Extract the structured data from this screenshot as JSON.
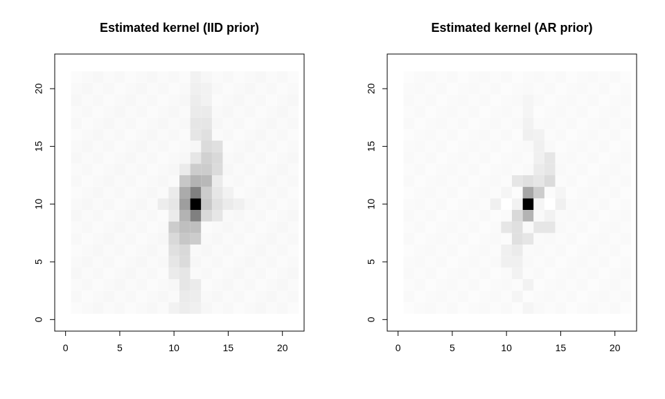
{
  "chart_data": [
    {
      "type": "heatmap",
      "title": "Estimated kernel (IID prior)",
      "xlabel": "",
      "ylabel": "",
      "xlim": [
        0,
        22
      ],
      "ylim": [
        0,
        22
      ],
      "xticks": [
        "0",
        "5",
        "10",
        "15",
        "20"
      ],
      "yticks": [
        "0",
        "5",
        "10",
        "15",
        "20"
      ],
      "colormap": "white-to-black (grayscale)",
      "grid": false,
      "x_range": [
        1,
        21
      ],
      "y_range": [
        1,
        21
      ],
      "cells": [
        [
          12,
          10,
          1.0
        ],
        [
          12,
          11,
          0.5
        ],
        [
          12,
          9,
          0.5
        ],
        [
          11,
          10,
          0.38
        ],
        [
          13,
          10,
          0.22
        ],
        [
          11,
          11,
          0.33
        ],
        [
          11,
          9,
          0.3
        ],
        [
          13,
          11,
          0.2
        ],
        [
          13,
          9,
          0.15
        ],
        [
          12,
          12,
          0.3
        ],
        [
          11,
          12,
          0.22
        ],
        [
          13,
          12,
          0.28
        ],
        [
          12,
          13,
          0.2
        ],
        [
          13,
          13,
          0.2
        ],
        [
          14,
          13,
          0.14
        ],
        [
          13,
          14,
          0.18
        ],
        [
          14,
          14,
          0.15
        ],
        [
          13,
          15,
          0.14
        ],
        [
          14,
          15,
          0.12
        ],
        [
          13,
          16,
          0.12
        ],
        [
          12,
          16,
          0.1
        ],
        [
          13,
          17,
          0.1
        ],
        [
          12,
          17,
          0.1
        ],
        [
          12,
          18,
          0.08
        ],
        [
          13,
          18,
          0.08
        ],
        [
          12,
          19,
          0.07
        ],
        [
          12,
          20,
          0.06
        ],
        [
          13,
          20,
          0.05
        ],
        [
          12,
          21,
          0.05
        ],
        [
          11,
          8,
          0.25
        ],
        [
          12,
          8,
          0.25
        ],
        [
          10,
          8,
          0.2
        ],
        [
          11,
          7,
          0.22
        ],
        [
          12,
          7,
          0.2
        ],
        [
          10,
          7,
          0.15
        ],
        [
          11,
          6,
          0.15
        ],
        [
          10,
          6,
          0.12
        ],
        [
          11,
          5,
          0.14
        ],
        [
          10,
          5,
          0.1
        ],
        [
          11,
          4,
          0.1
        ],
        [
          10,
          4,
          0.08
        ],
        [
          11,
          3,
          0.1
        ],
        [
          12,
          3,
          0.08
        ],
        [
          11,
          2,
          0.08
        ],
        [
          12,
          2,
          0.07
        ],
        [
          11,
          1,
          0.07
        ],
        [
          12,
          1,
          0.06
        ],
        [
          10,
          1,
          0.05
        ],
        [
          14,
          10,
          0.12
        ],
        [
          15,
          10,
          0.08
        ],
        [
          16,
          10,
          0.06
        ],
        [
          10,
          10,
          0.1
        ],
        [
          9,
          10,
          0.07
        ],
        [
          14,
          9,
          0.1
        ],
        [
          14,
          11,
          0.1
        ],
        [
          10,
          11,
          0.08
        ],
        [
          10,
          9,
          0.08
        ],
        [
          15,
          11,
          0.05
        ],
        [
          12,
          14,
          0.1
        ],
        [
          11,
          13,
          0.08
        ],
        [
          14,
          12,
          0.08
        ],
        [
          13,
          19,
          0.05
        ]
      ],
      "base_intensity": 0.03
    },
    {
      "type": "heatmap",
      "title": "Estimated kernel (AR prior)",
      "xlabel": "",
      "ylabel": "",
      "xlim": [
        0,
        22
      ],
      "ylim": [
        0,
        22
      ],
      "xticks": [
        "0",
        "5",
        "10",
        "15",
        "20"
      ],
      "yticks": [
        "0",
        "5",
        "10",
        "15",
        "20"
      ],
      "colormap": "white-to-black (grayscale)",
      "grid": false,
      "x_range": [
        1,
        21
      ],
      "y_range": [
        1,
        21
      ],
      "cells": [
        [
          12,
          10,
          1.0
        ],
        [
          12,
          11,
          0.35
        ],
        [
          13,
          11,
          0.2
        ],
        [
          12,
          9,
          0.3
        ],
        [
          11,
          9,
          0.15
        ],
        [
          11,
          10,
          0.05
        ],
        [
          13,
          10,
          0.04
        ],
        [
          10,
          10,
          0.0
        ],
        [
          14,
          10,
          0.0
        ],
        [
          12,
          12,
          0.12
        ],
        [
          13,
          12,
          0.1
        ],
        [
          14,
          12,
          0.14
        ],
        [
          11,
          12,
          0.1
        ],
        [
          13,
          13,
          0.08
        ],
        [
          14,
          13,
          0.1
        ],
        [
          14,
          14,
          0.1
        ],
        [
          13,
          14,
          0.06
        ],
        [
          13,
          15,
          0.06
        ],
        [
          12,
          16,
          0.06
        ],
        [
          13,
          16,
          0.05
        ],
        [
          12,
          17,
          0.05
        ],
        [
          12,
          18,
          0.04
        ],
        [
          12,
          19,
          0.04
        ],
        [
          11,
          8,
          0.12
        ],
        [
          10,
          8,
          0.1
        ],
        [
          11,
          7,
          0.12
        ],
        [
          12,
          7,
          0.1
        ],
        [
          10,
          6,
          0.06
        ],
        [
          11,
          6,
          0.08
        ],
        [
          10,
          5,
          0.06
        ],
        [
          11,
          5,
          0.06
        ],
        [
          11,
          4,
          0.05
        ],
        [
          12,
          3,
          0.05
        ],
        [
          11,
          2,
          0.04
        ],
        [
          12,
          1,
          0.04
        ],
        [
          13,
          8,
          0.1
        ],
        [
          14,
          8,
          0.1
        ],
        [
          9,
          10,
          0.06
        ],
        [
          15,
          10,
          0.06
        ],
        [
          15,
          11,
          0.04
        ],
        [
          10,
          11,
          0.04
        ],
        [
          14,
          9,
          0.05
        ]
      ],
      "base_intensity": 0.025
    }
  ]
}
